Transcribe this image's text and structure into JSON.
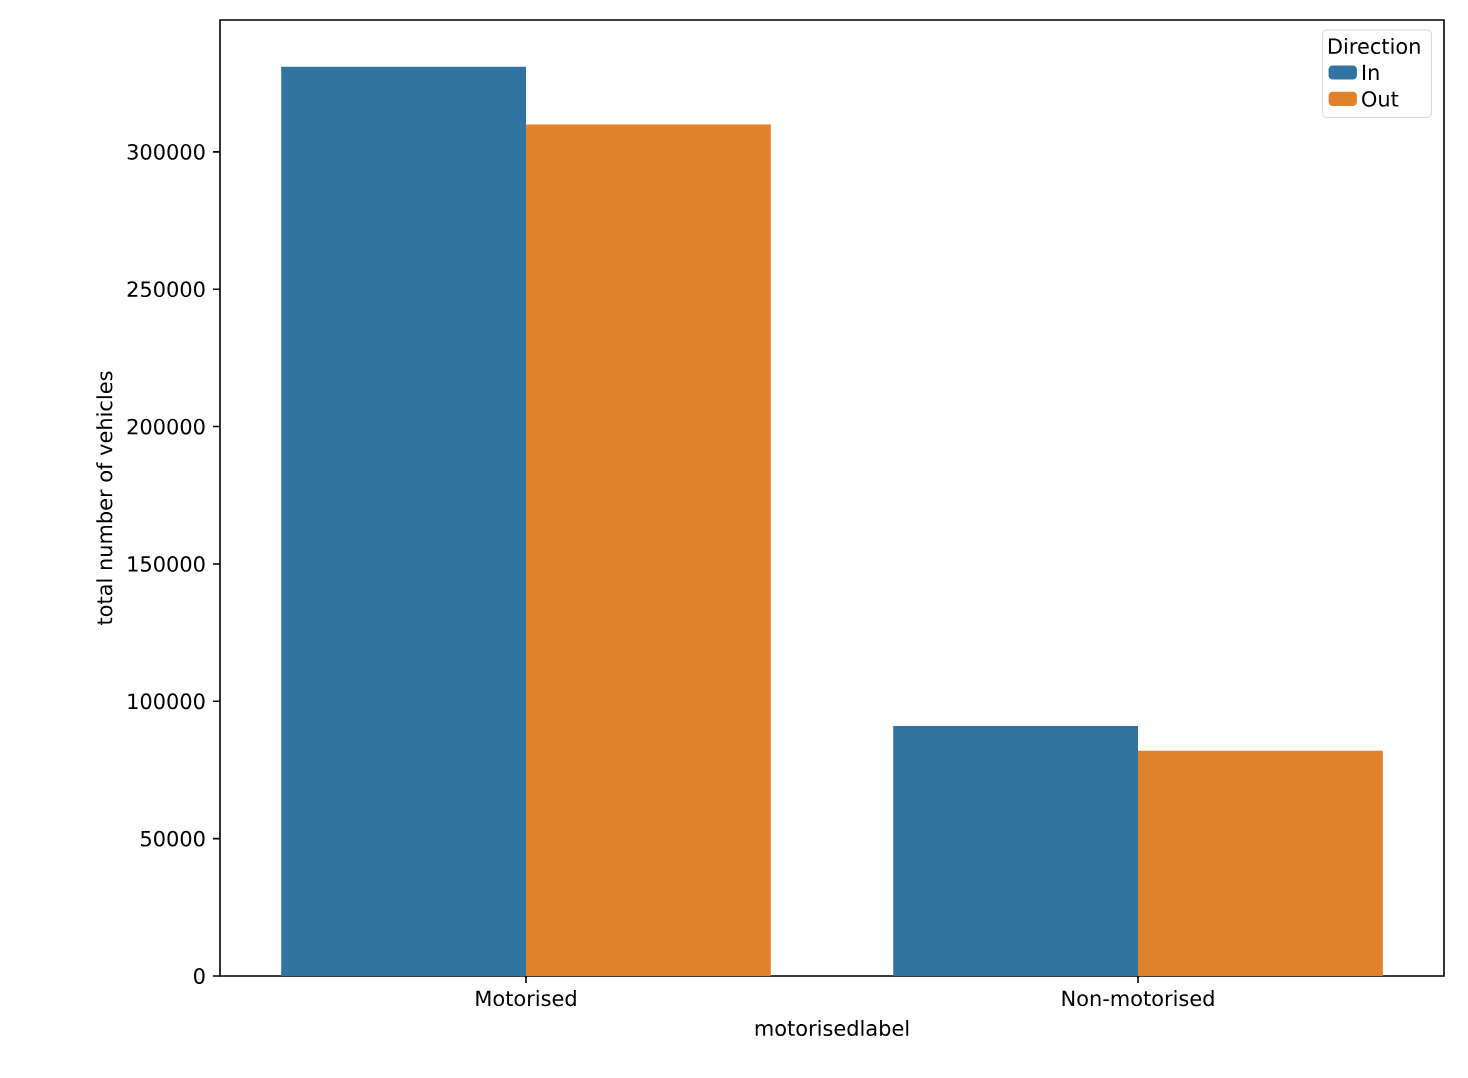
{
  "chart_data": {
    "type": "bar",
    "xlabel": "motorisedlabel",
    "ylabel": "total number of vehicles",
    "legend_title": "Direction",
    "legend": "top right",
    "grid": false,
    "categories": [
      "Motorised",
      "Non-motorised"
    ],
    "series": [
      {
        "name": "In",
        "color": "#3274a1",
        "values": [
          331000,
          91000
        ]
      },
      {
        "name": "Out",
        "color": "#e1812c",
        "values": [
          310000,
          82000
        ]
      }
    ],
    "ylim": [
      0,
      348000
    ],
    "yticks": [
      0,
      50000,
      100000,
      150000,
      200000,
      250000,
      300000
    ]
  }
}
